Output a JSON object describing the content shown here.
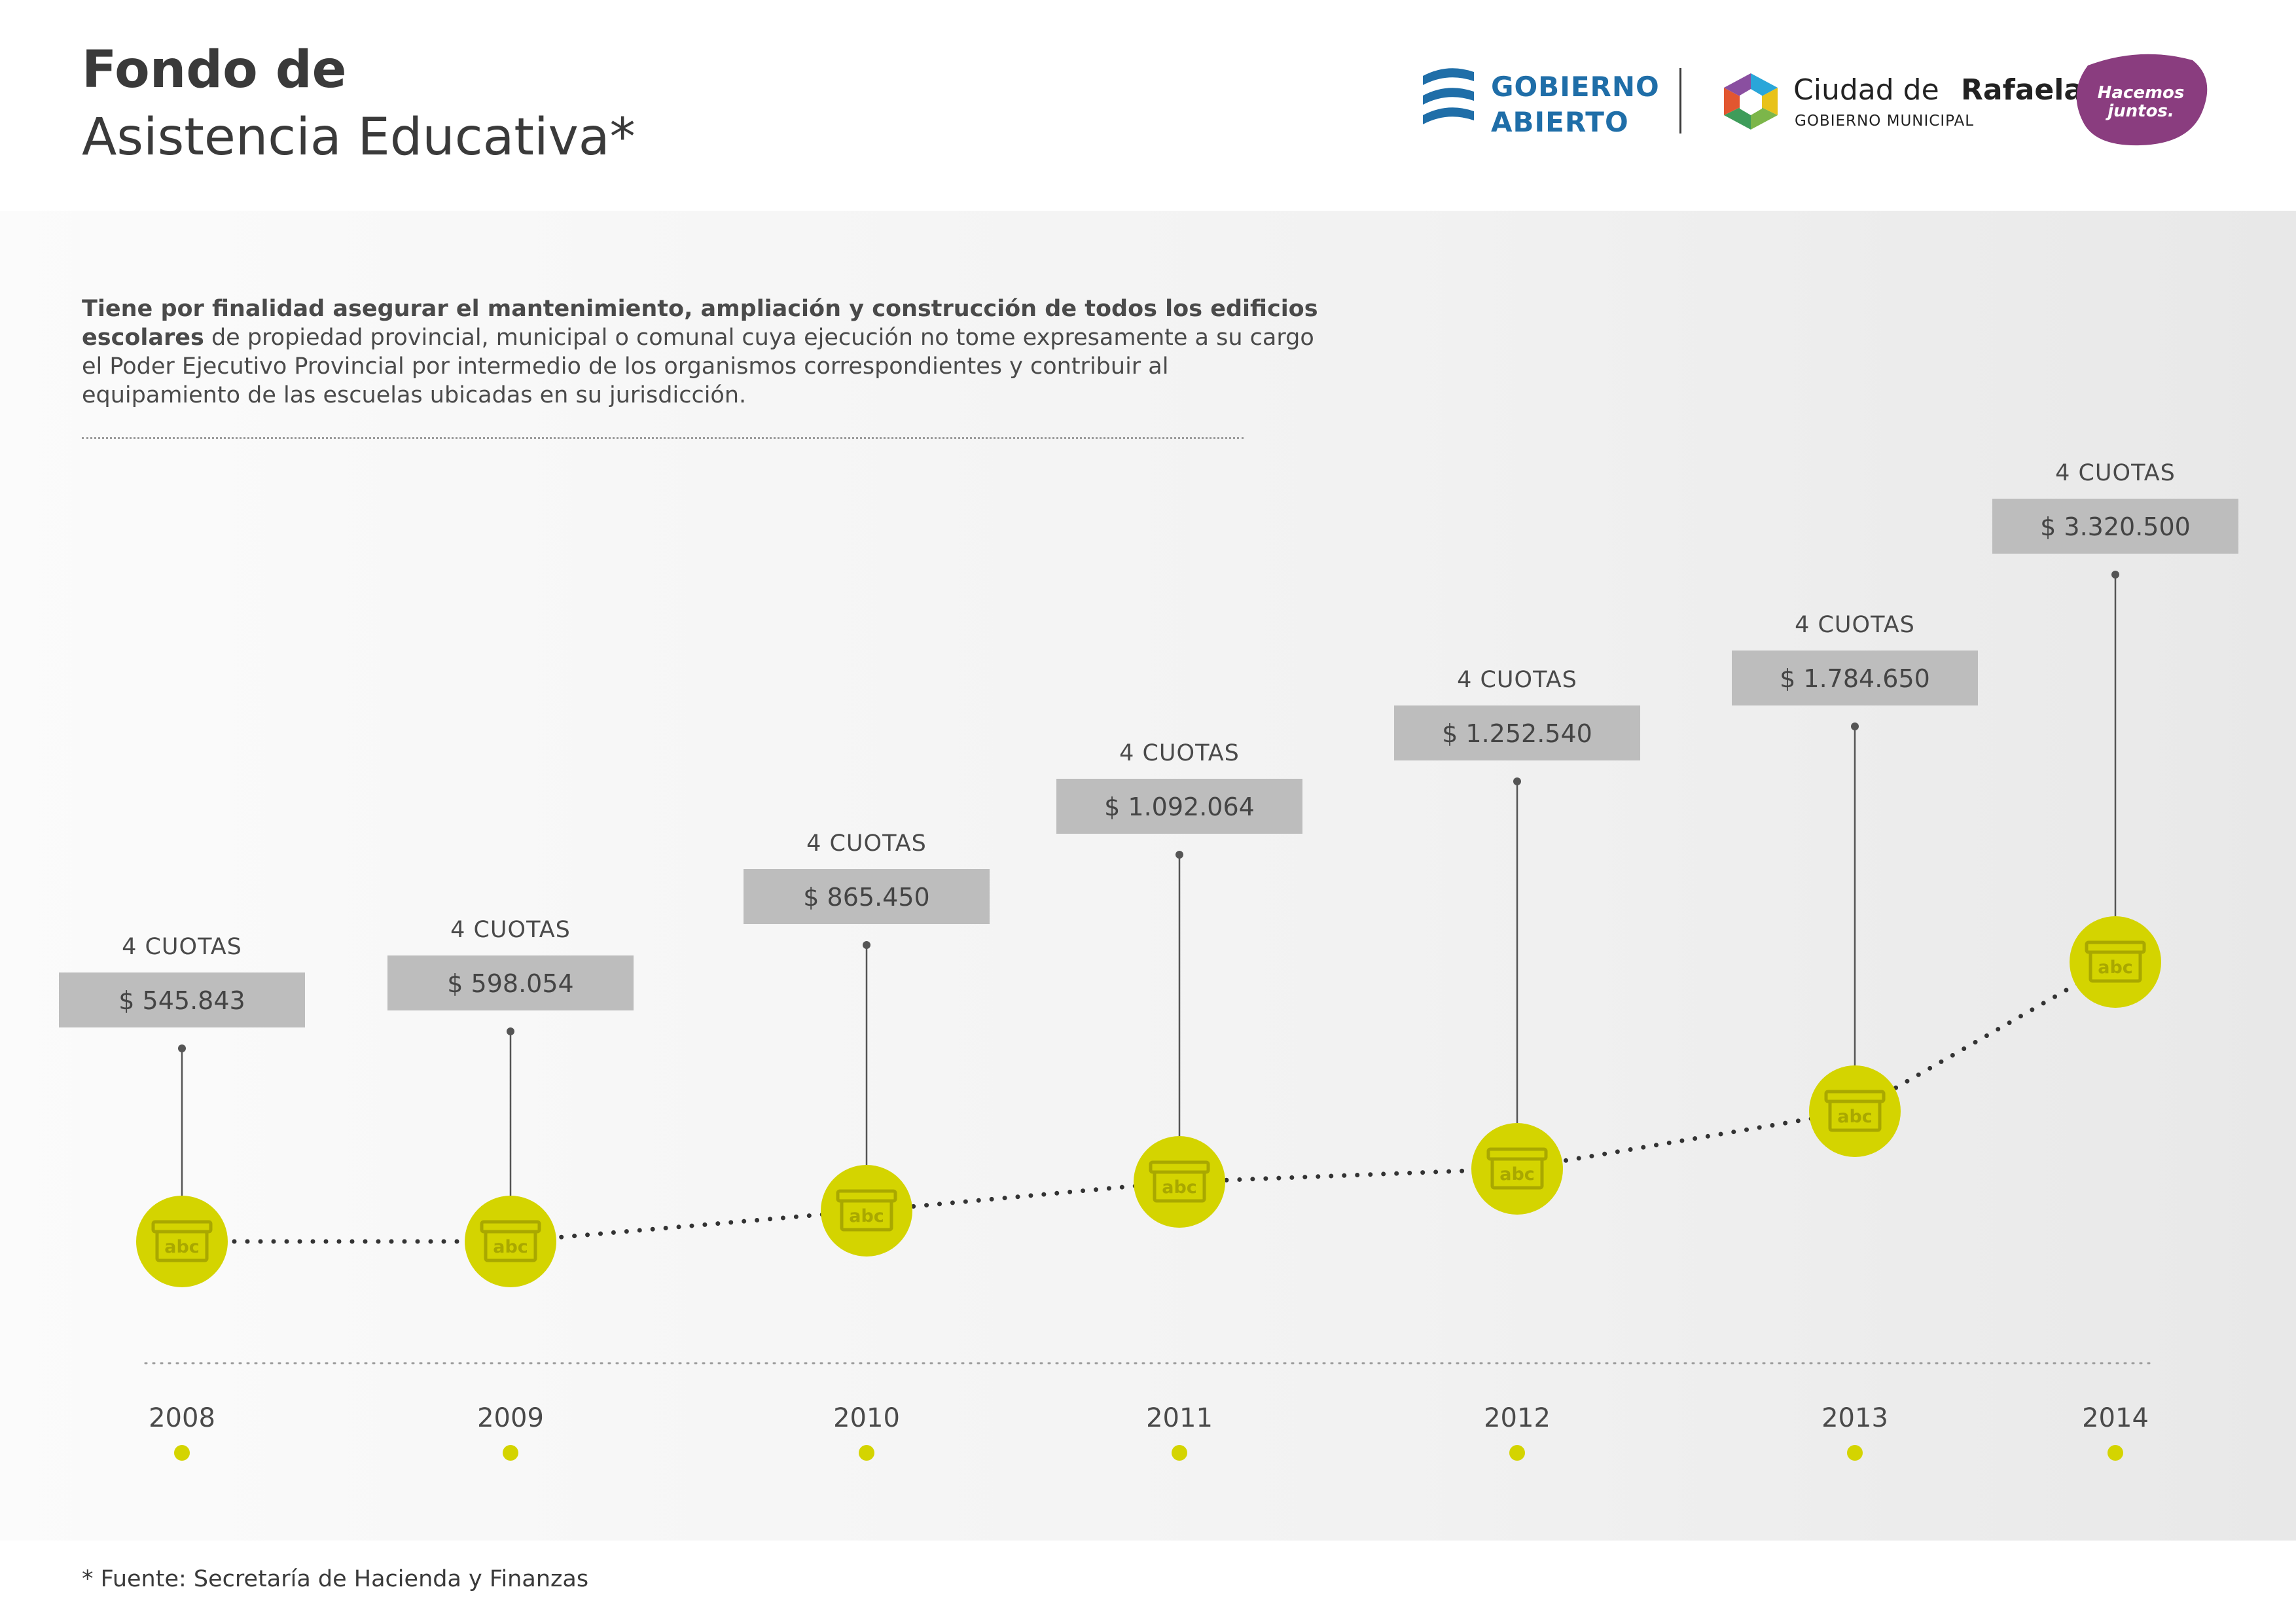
{
  "header": {
    "title_line1": "Fondo de",
    "title_line2": "Asistencia Educativa*"
  },
  "logos": {
    "gobierno_abierto": {
      "line1": "GOBIERNO",
      "line2": "ABIERTO",
      "icon": "gobierno-abierto-icon",
      "color": "#1f6ea8"
    },
    "ciudad_rafaela": {
      "name_regular": "Ciudad de",
      "name_bold": "Rafaela",
      "subtitle": "GOBIERNO MUNICIPAL",
      "icon": "hexagon-icon"
    },
    "hacemos_juntos": {
      "text": "Hacemos\njuntos.",
      "color": "#8a3d7f"
    }
  },
  "description": {
    "bold_part": "Tiene por finalidad asegurar el mantenimiento, ampliación y construcción de todos los edificios escolares",
    "regular_part": " de propiedad provincial, municipal o comunal cuya ejecución no tome expresamente a su cargo el Poder Ejecutivo Provincial por intermedio de los organismos correspondientes y contribuir al equipamiento de las escuelas ubicadas en su jurisdicción."
  },
  "chart_data": {
    "type": "line",
    "title": "Fondo de Asistencia Educativa*",
    "x": [
      "2008",
      "2009",
      "2010",
      "2011",
      "2012",
      "2013",
      "2014"
    ],
    "series": [
      {
        "values": [
          545843,
          598054,
          865450,
          1092064,
          1252540,
          1784650,
          3320500
        ],
        "labels": [
          "$ 545.843",
          "$ 598.054",
          "$ 865.450",
          "$ 1.092.064",
          "$ 1.252.540",
          "$ 1.784.650",
          "$ 3.320.500"
        ],
        "annotations": [
          "4 CUOTAS",
          "4 CUOTAS",
          "4 CUOTAS",
          "4 CUOTAS",
          "4 CUOTAS",
          "4 CUOTAS",
          "4 CUOTAS"
        ]
      }
    ],
    "marker_icon": "abc-box-icon",
    "marker_text": "abc",
    "grid": false,
    "legend": "none",
    "colors": {
      "marker": "#d4d400",
      "label_box": "#bdbdbd",
      "line": "#333333"
    }
  },
  "footnote": "* Fuente: Secretaría de Hacienda y Finanzas"
}
